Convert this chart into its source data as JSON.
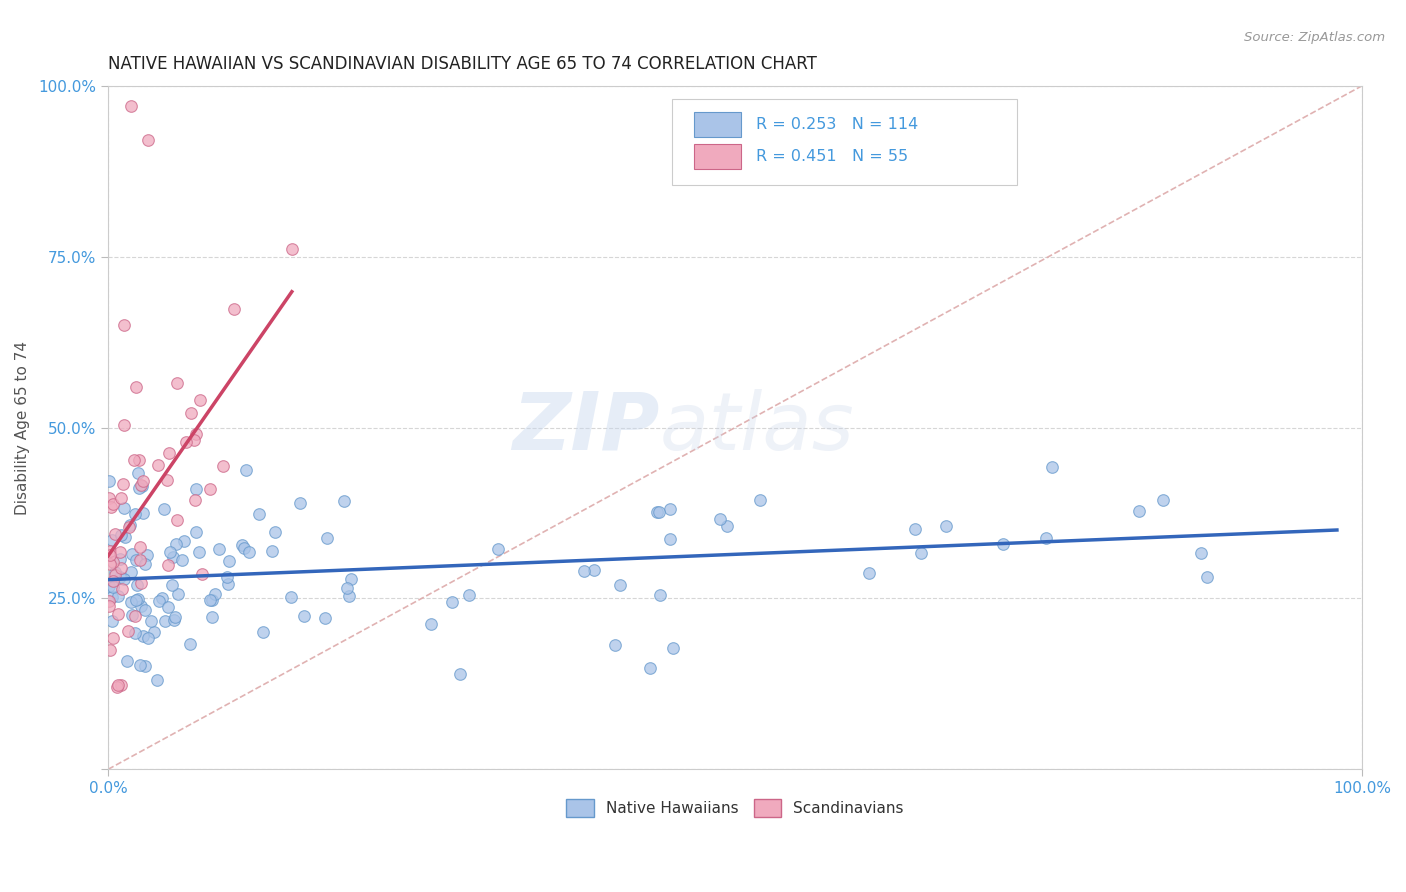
{
  "title": "NATIVE HAWAIIAN VS SCANDINAVIAN DISABILITY AGE 65 TO 74 CORRELATION CHART",
  "source": "Source: ZipAtlas.com",
  "ylabel": "Disability Age 65 to 74",
  "series": [
    {
      "name": "Native Hawaiians",
      "color": "#aac4e8",
      "edge_color": "#6699cc",
      "R": 0.253,
      "N": 114,
      "trend_color": "#3366bb"
    },
    {
      "name": "Scandinavians",
      "color": "#f0aabe",
      "edge_color": "#cc6688",
      "R": 0.451,
      "N": 55,
      "trend_color": "#cc4466"
    }
  ],
  "xlim": [
    0.0,
    1.0
  ],
  "ylim": [
    0.0,
    1.0
  ],
  "yticks": [
    0.0,
    0.25,
    0.5,
    0.75,
    1.0
  ],
  "ytick_labels": [
    "",
    "25.0%",
    "50.0%",
    "75.0%",
    "100.0%"
  ],
  "xtick_labels": [
    "0.0%",
    "100.0%"
  ],
  "watermark": "ZIPatlas",
  "bg_color": "#ffffff",
  "grid_color": "#cccccc",
  "title_color": "#222222",
  "axis_label_color": "#4499dd",
  "diagonal_color": "#ddaaaa"
}
